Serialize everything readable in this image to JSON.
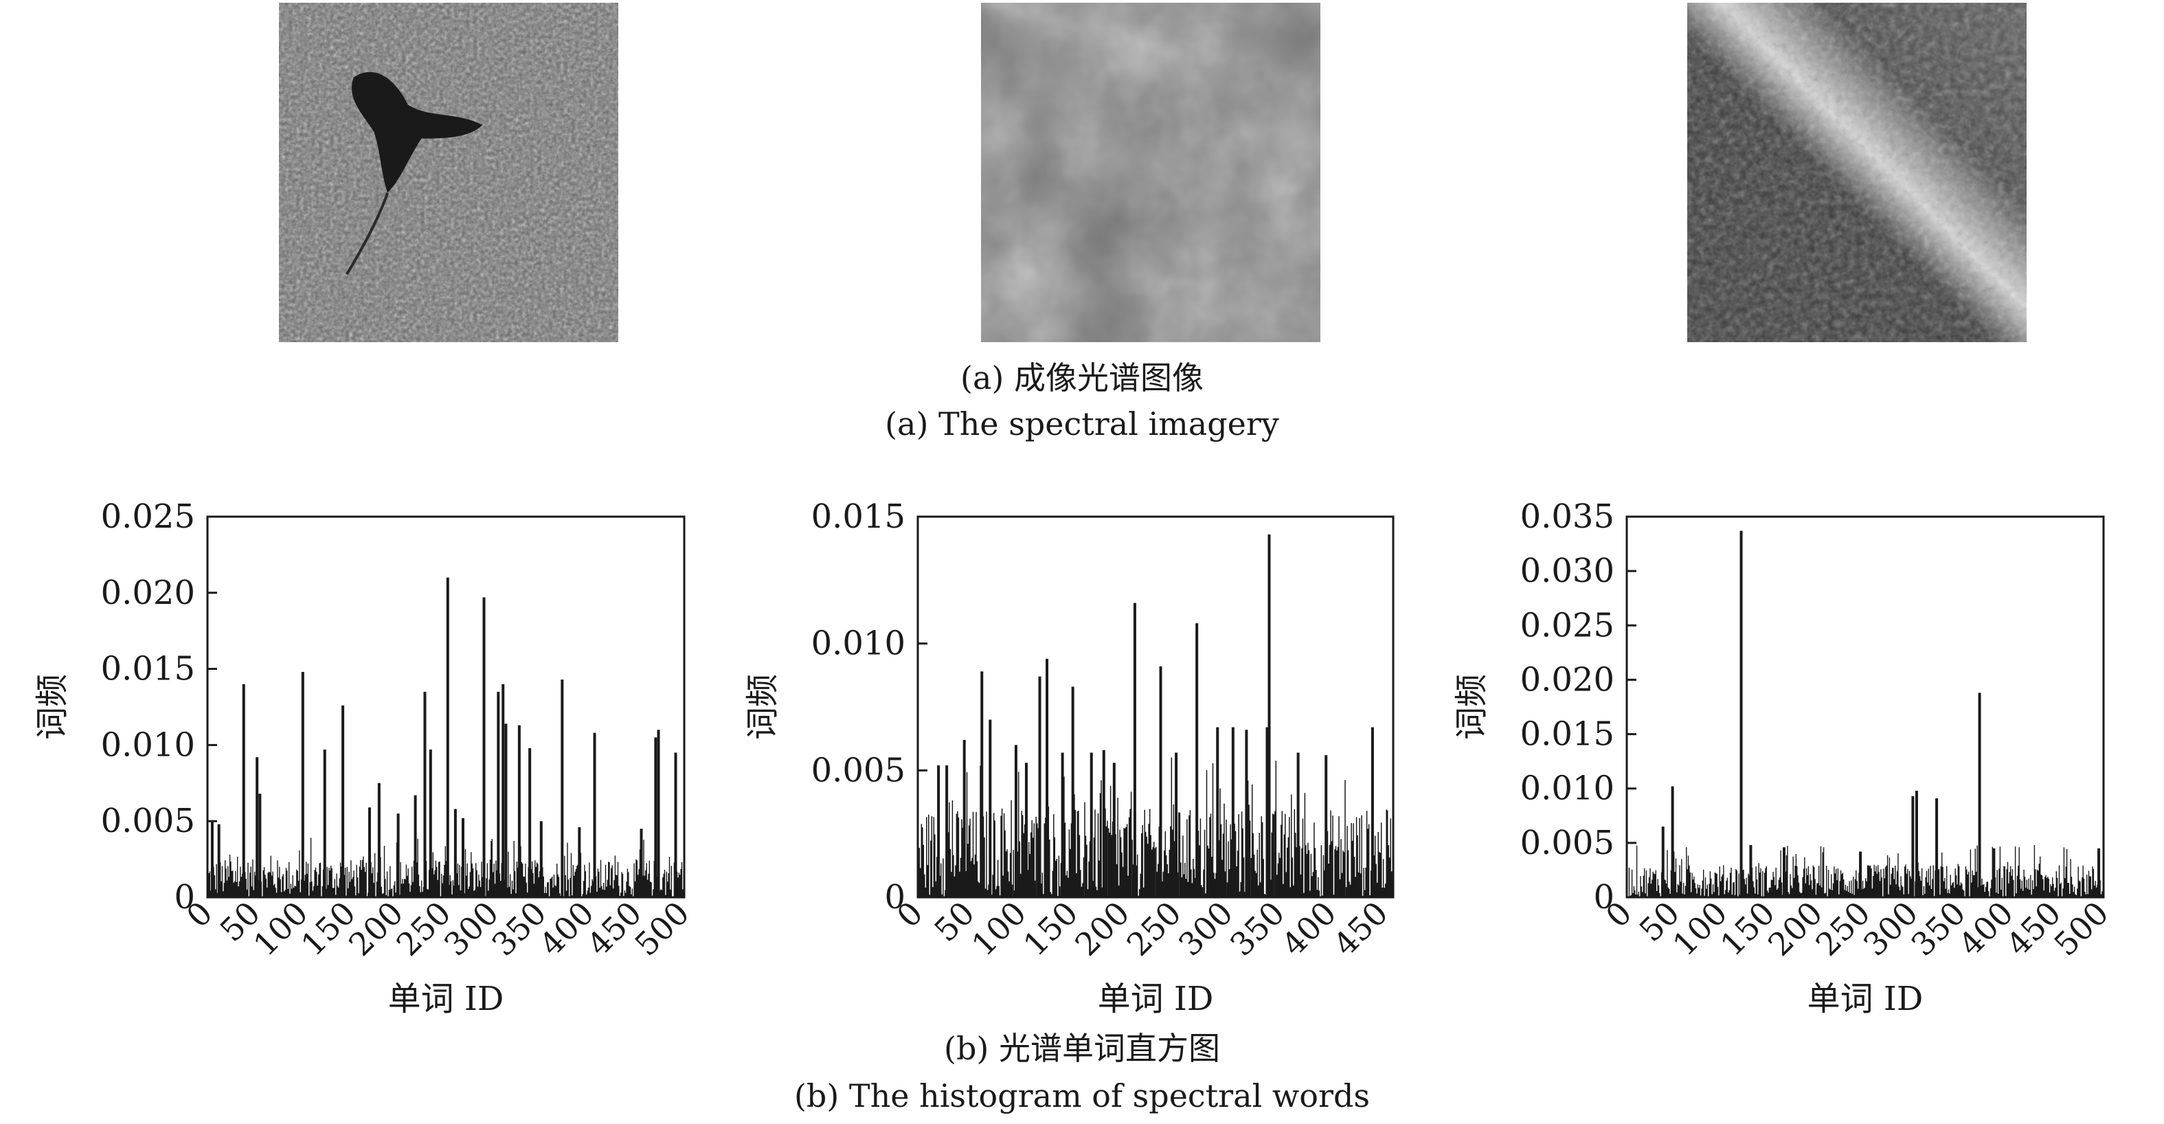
{
  "top": {
    "caption_cn": "(a) 成像光谱图像",
    "caption_en": "(a) The spectral imagery",
    "images": [
      {
        "name": "satellite-image-reservoir"
      },
      {
        "name": "satellite-image-clouds"
      },
      {
        "name": "satellite-image-mountains"
      }
    ]
  },
  "bottom": {
    "caption_cn": "(b) 光谱单词直方图",
    "caption_en": "(b) The histogram of spectral words"
  },
  "chart_data": [
    {
      "type": "bar",
      "xlabel": "单词 ID",
      "ylabel": "词频",
      "xlim": [
        0,
        500
      ],
      "ylim": [
        0,
        0.025
      ],
      "xticks": [
        "0",
        "50",
        "100",
        "150",
        "200",
        "250",
        "300",
        "350",
        "400",
        "450",
        "500"
      ],
      "yticks": [
        "0",
        "0.005",
        "0.010",
        "0.015",
        "0.020",
        "0.025"
      ],
      "grid": false,
      "n_bins": 500,
      "background_max": 0.0025,
      "peaks": [
        {
          "x": 38,
          "y": 0.014
        },
        {
          "x": 52,
          "y": 0.0092
        },
        {
          "x": 55,
          "y": 0.0068
        },
        {
          "x": 100,
          "y": 0.0148
        },
        {
          "x": 123,
          "y": 0.0097
        },
        {
          "x": 142,
          "y": 0.0126
        },
        {
          "x": 170,
          "y": 0.0059
        },
        {
          "x": 228,
          "y": 0.0135
        },
        {
          "x": 234,
          "y": 0.0097
        },
        {
          "x": 218,
          "y": 0.0067
        },
        {
          "x": 252,
          "y": 0.021
        },
        {
          "x": 290,
          "y": 0.0197
        },
        {
          "x": 305,
          "y": 0.0135
        },
        {
          "x": 310,
          "y": 0.014
        },
        {
          "x": 313,
          "y": 0.0114
        },
        {
          "x": 327,
          "y": 0.0113
        },
        {
          "x": 338,
          "y": 0.0098
        },
        {
          "x": 372,
          "y": 0.0143
        },
        {
          "x": 406,
          "y": 0.0108
        },
        {
          "x": 470,
          "y": 0.0105
        },
        {
          "x": 473,
          "y": 0.011
        },
        {
          "x": 491,
          "y": 0.0095
        },
        {
          "x": 5,
          "y": 0.005
        },
        {
          "x": 12,
          "y": 0.0048
        },
        {
          "x": 180,
          "y": 0.0075
        },
        {
          "x": 200,
          "y": 0.0055
        },
        {
          "x": 260,
          "y": 0.0058
        },
        {
          "x": 268,
          "y": 0.0052
        },
        {
          "x": 350,
          "y": 0.005
        },
        {
          "x": 390,
          "y": 0.0046
        },
        {
          "x": 455,
          "y": 0.0045
        }
      ]
    },
    {
      "type": "bar",
      "xlabel": "单词 ID",
      "ylabel": "词频",
      "xlim": [
        0,
        460
      ],
      "ylim": [
        0,
        0.015
      ],
      "xticks": [
        "0",
        "50",
        "100",
        "150",
        "200",
        "250",
        "300",
        "350",
        "400",
        "450"
      ],
      "yticks": [
        "0",
        "0.005",
        "0.010",
        "0.015"
      ],
      "grid": false,
      "n_bins": 460,
      "background_max": 0.0035,
      "peaks": [
        {
          "x": 62,
          "y": 0.0089
        },
        {
          "x": 70,
          "y": 0.007
        },
        {
          "x": 118,
          "y": 0.0087
        },
        {
          "x": 125,
          "y": 0.0094
        },
        {
          "x": 150,
          "y": 0.0083
        },
        {
          "x": 168,
          "y": 0.0057
        },
        {
          "x": 180,
          "y": 0.0058
        },
        {
          "x": 210,
          "y": 0.0116
        },
        {
          "x": 235,
          "y": 0.0091
        },
        {
          "x": 270,
          "y": 0.0108
        },
        {
          "x": 305,
          "y": 0.0067
        },
        {
          "x": 340,
          "y": 0.0143
        },
        {
          "x": 338,
          "y": 0.0067
        },
        {
          "x": 20,
          "y": 0.0052
        },
        {
          "x": 28,
          "y": 0.0052
        },
        {
          "x": 45,
          "y": 0.0062
        },
        {
          "x": 95,
          "y": 0.006
        },
        {
          "x": 105,
          "y": 0.0053
        },
        {
          "x": 140,
          "y": 0.0057
        },
        {
          "x": 190,
          "y": 0.0053
        },
        {
          "x": 250,
          "y": 0.0057
        },
        {
          "x": 290,
          "y": 0.0067
        },
        {
          "x": 318,
          "y": 0.0066
        },
        {
          "x": 368,
          "y": 0.0057
        },
        {
          "x": 395,
          "y": 0.0056
        },
        {
          "x": 440,
          "y": 0.0067
        }
      ]
    },
    {
      "type": "bar",
      "xlabel": "单词 ID",
      "ylabel": "词频",
      "xlim": [
        0,
        500
      ],
      "ylim": [
        0,
        0.035
      ],
      "xticks": [
        "0",
        "50",
        "100",
        "150",
        "200",
        "250",
        "300",
        "350",
        "400",
        "450",
        "500"
      ],
      "yticks": [
        "0",
        "0.005",
        "0.010",
        "0.015",
        "0.020",
        "0.025",
        "0.030",
        "0.035"
      ],
      "grid": false,
      "n_bins": 500,
      "background_max": 0.003,
      "peaks": [
        {
          "x": 48,
          "y": 0.0102
        },
        {
          "x": 38,
          "y": 0.0065
        },
        {
          "x": 120,
          "y": 0.0337
        },
        {
          "x": 300,
          "y": 0.0093
        },
        {
          "x": 304,
          "y": 0.0098
        },
        {
          "x": 325,
          "y": 0.0091
        },
        {
          "x": 370,
          "y": 0.0188
        },
        {
          "x": 130,
          "y": 0.0048
        },
        {
          "x": 165,
          "y": 0.0046
        },
        {
          "x": 245,
          "y": 0.0042
        },
        {
          "x": 385,
          "y": 0.0045
        },
        {
          "x": 495,
          "y": 0.0045
        }
      ]
    }
  ]
}
